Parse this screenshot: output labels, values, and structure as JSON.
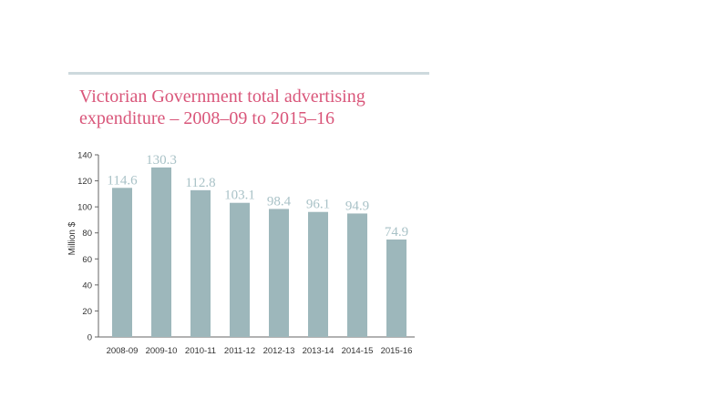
{
  "chart_data": {
    "type": "bar",
    "title_line1": "Victorian Government total advertising",
    "title_line2": "expenditure – 2008–09 to 2015–16",
    "ylabel": "Million $",
    "xlabel": "",
    "categories": [
      "2008-09",
      "2009-10",
      "2010-11",
      "2011-12",
      "2012-13",
      "2013-14",
      "2014-15",
      "2015-16"
    ],
    "values": [
      114.6,
      130.3,
      112.8,
      103.1,
      98.4,
      96.1,
      94.9,
      74.9
    ],
    "value_labels": [
      "114.6",
      "130.3",
      "112.8",
      "103.1",
      "98.4",
      "96.1",
      "94.9",
      "74.9"
    ],
    "ylim": [
      0,
      140
    ],
    "yticks": [
      0,
      20,
      40,
      60,
      80,
      100,
      120,
      140
    ],
    "grid": false,
    "legend": "none",
    "colors": {
      "bar": "#9db7bb",
      "value_label": "#a9c2c7",
      "title": "#d9567a",
      "axis": "#666666",
      "rule": "#cdd9dd"
    }
  }
}
